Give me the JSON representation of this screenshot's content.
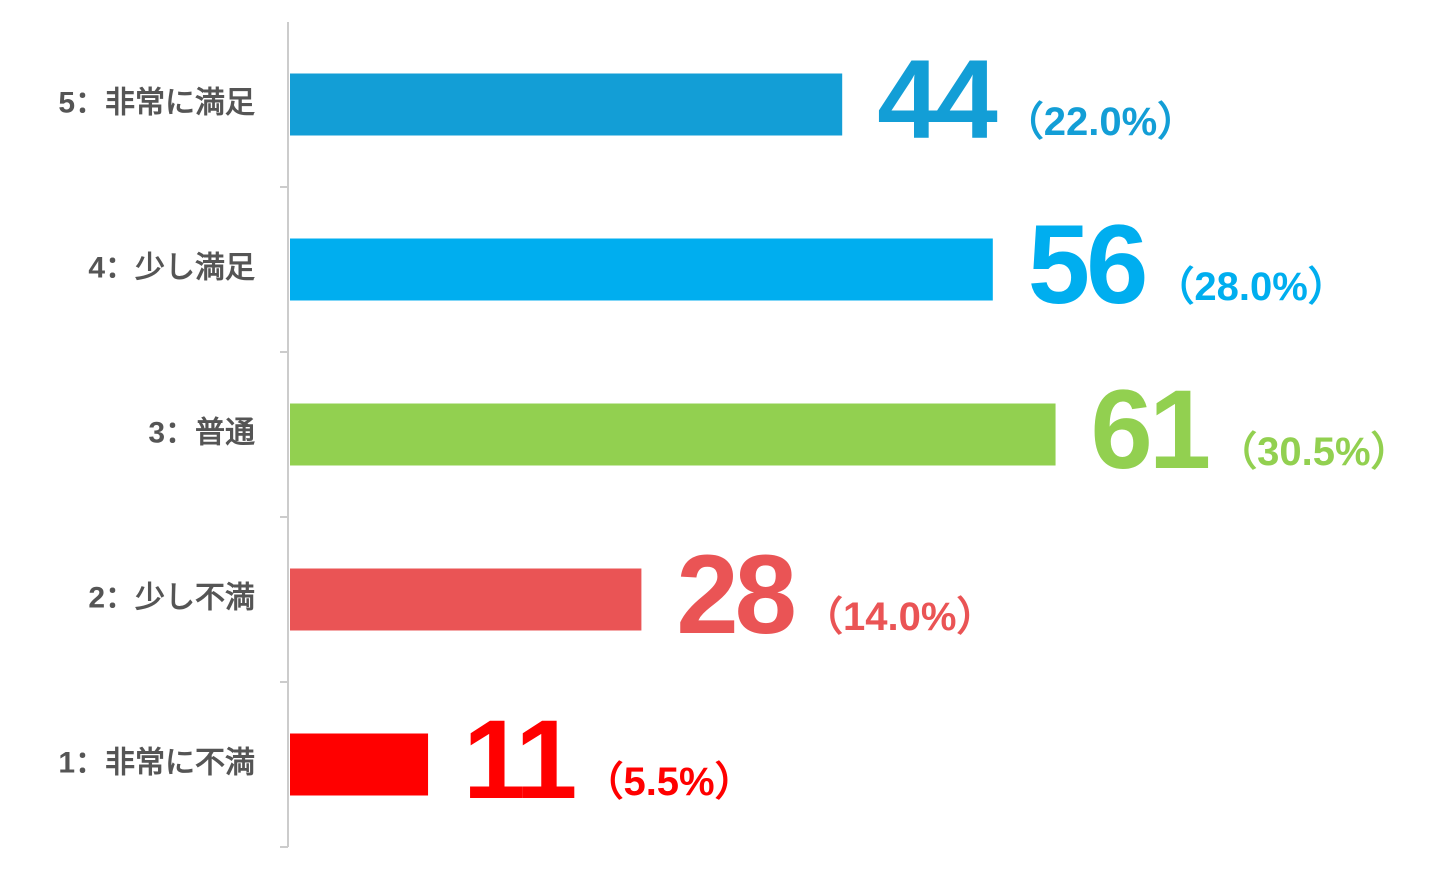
{
  "chart_data": {
    "type": "bar",
    "orientation": "horizontal",
    "categories": [
      "5：非常に満足",
      "4：少し満足",
      "3：普通",
      "2：少し不満",
      "1：非常に不満"
    ],
    "values": [
      44,
      56,
      61,
      28,
      11
    ],
    "percent_labels": [
      "（22.0%）",
      "（28.0%）",
      "（30.5%）",
      "（14.0%）",
      "（5.5%）"
    ],
    "colors": [
      "#139ed6",
      "#00aeef",
      "#92d050",
      "#ea5455",
      "#ff0000"
    ]
  }
}
